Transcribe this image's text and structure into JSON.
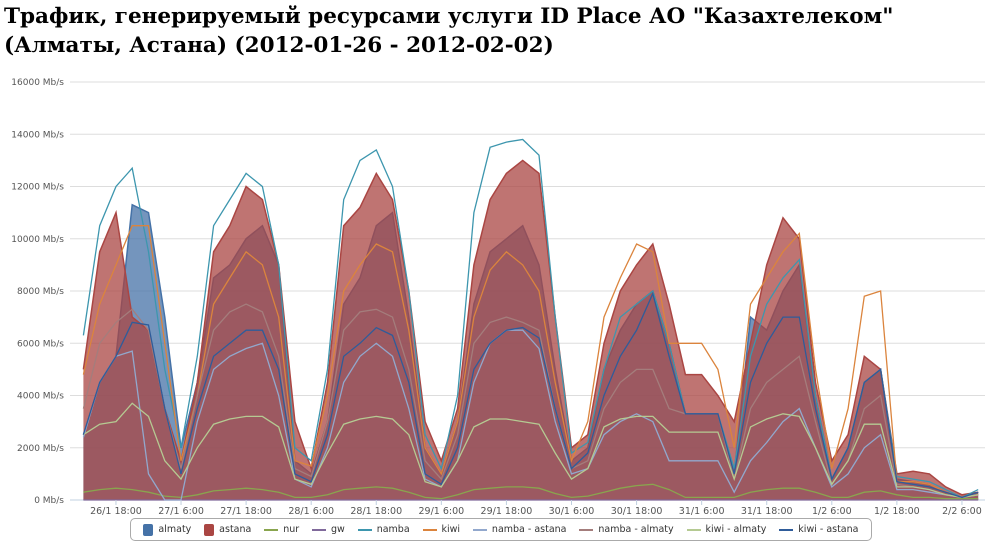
{
  "title": "Трафик, генерируемый ресурсами услуги ID Place АО \"Казахтелеком\" (Алматы, Астана) (2012-01-26 - 2012-02-02)",
  "chart_data": {
    "type": "area",
    "title": "Трафик, генерируемый ресурсами услуги ID Place АО \"Казахтелеком\" (Алматы, Астана) (2012-01-26 - 2012-02-02)",
    "xlim": [
      "2012-01-26 11:00",
      "2012-02-02 10:15"
    ],
    "ylim": [
      0,
      16000
    ],
    "grid": true,
    "legend_placement": "bottom",
    "y_ticks": [
      "0 Mb/s",
      "2000 Mb/s",
      "4000 Mb/s",
      "6000 Mb/s",
      "8000 Mb/s",
      "10000 Mb/s",
      "12000 Mb/s",
      "14000 Mb/s",
      "16000 Mb/s"
    ],
    "y_tick_values": [
      0,
      2000,
      4000,
      6000,
      8000,
      10000,
      12000,
      14000,
      16000
    ],
    "x_ticks": [
      "26/1 18:00",
      "27/1 6:00",
      "27/1 18:00",
      "28/1 6:00",
      "28/1 18:00",
      "29/1 6:00",
      "29/1 18:00",
      "30/1 6:00",
      "30/1 18:00",
      "31/1 6:00",
      "31/1 18:00",
      "1/2 6:00",
      "1/2 18:00",
      "2/2 6:00"
    ],
    "x_tick_values": [
      "2012-01-26 18:00",
      "2012-01-27 06:00",
      "2012-01-27 18:00",
      "2012-01-28 06:00",
      "2012-01-28 18:00",
      "2012-01-29 06:00",
      "2012-01-29 18:00",
      "2012-01-30 06:00",
      "2012-01-30 18:00",
      "2012-01-31 06:00",
      "2012-01-31 18:00",
      "2012-02-01 06:00",
      "2012-02-01 18:00",
      "2012-02-02 06:00"
    ],
    "x": [
      "2012-01-26 12:00",
      "2012-01-26 15:00",
      "2012-01-26 18:00",
      "2012-01-26 21:00",
      "2012-01-27 00:00",
      "2012-01-27 03:00",
      "2012-01-27 06:00",
      "2012-01-27 09:00",
      "2012-01-27 12:00",
      "2012-01-27 15:00",
      "2012-01-27 18:00",
      "2012-01-27 21:00",
      "2012-01-28 00:00",
      "2012-01-28 03:00",
      "2012-01-28 06:00",
      "2012-01-28 09:00",
      "2012-01-28 12:00",
      "2012-01-28 15:00",
      "2012-01-28 18:00",
      "2012-01-28 21:00",
      "2012-01-29 00:00",
      "2012-01-29 03:00",
      "2012-01-29 06:00",
      "2012-01-29 09:00",
      "2012-01-29 12:00",
      "2012-01-29 15:00",
      "2012-01-29 18:00",
      "2012-01-29 21:00",
      "2012-01-30 00:00",
      "2012-01-30 03:00",
      "2012-01-30 06:00",
      "2012-01-30 09:00",
      "2012-01-30 12:00",
      "2012-01-30 15:00",
      "2012-01-30 18:00",
      "2012-01-30 21:00",
      "2012-01-31 00:00",
      "2012-01-31 03:00",
      "2012-01-31 06:00",
      "2012-01-31 09:00",
      "2012-01-31 12:00",
      "2012-01-31 15:00",
      "2012-01-31 18:00",
      "2012-01-31 21:00",
      "2012-02-01 00:00",
      "2012-02-01 03:00",
      "2012-02-01 06:00",
      "2012-02-01 09:00",
      "2012-02-01 12:00",
      "2012-02-01 15:00",
      "2012-02-01 18:00",
      "2012-02-01 21:00",
      "2012-02-02 00:00",
      "2012-02-02 03:00",
      "2012-02-02 06:00",
      "2012-02-02 09:00"
    ],
    "series": [
      {
        "name": "almaty",
        "kind": "area",
        "color": "#4572a7",
        "values": [
          2500,
          4500,
          5500,
          11300,
          11000,
          7000,
          2000,
          4500,
          8500,
          9000,
          10000,
          10500,
          9000,
          1500,
          1000,
          3000,
          7500,
          8500,
          10500,
          11000,
          7000,
          2000,
          1000,
          3000,
          7500,
          9500,
          10000,
          10500,
          9000,
          5000,
          1500,
          2000,
          5000,
          6500,
          7500,
          8000,
          6000,
          3300,
          3300,
          3300,
          1000,
          7000,
          6500,
          8000,
          9000,
          4000,
          800,
          2000,
          4500,
          5000,
          800,
          700,
          600,
          300,
          100,
          300
        ]
      },
      {
        "name": "astana",
        "kind": "area",
        "color": "#aa4643",
        "values": [
          5000,
          9500,
          11000,
          7000,
          6500,
          3500,
          1500,
          4500,
          9500,
          10500,
          12000,
          11500,
          9000,
          3000,
          1200,
          4500,
          10500,
          11200,
          12500,
          11500,
          8000,
          3000,
          1500,
          3500,
          9000,
          11500,
          12500,
          13000,
          12500,
          7000,
          2000,
          2500,
          6000,
          8000,
          9000,
          9800,
          7500,
          4800,
          4800,
          4000,
          3000,
          6000,
          9000,
          10800,
          10000,
          4500,
          1500,
          2500,
          5500,
          5000,
          1000,
          1100,
          1000,
          500,
          200,
          300
        ]
      },
      {
        "name": "nur",
        "kind": "line",
        "color": "#89a54e",
        "values": [
          300,
          400,
          450,
          400,
          300,
          150,
          100,
          200,
          350,
          400,
          450,
          400,
          300,
          100,
          100,
          200,
          400,
          450,
          500,
          450,
          300,
          100,
          50,
          200,
          400,
          450,
          500,
          500,
          450,
          250,
          100,
          150,
          300,
          450,
          550,
          600,
          400,
          100,
          100,
          100,
          100,
          300,
          400,
          450,
          450,
          300,
          100,
          100,
          300,
          350,
          200,
          100,
          100,
          50,
          50,
          50
        ]
      },
      {
        "name": "gw",
        "kind": "line",
        "color": "#80699b",
        "values": [
          0,
          0,
          0,
          0,
          0,
          0,
          0,
          0,
          0,
          0,
          0,
          0,
          0,
          0,
          0,
          0,
          0,
          0,
          0,
          0,
          0,
          0,
          0,
          0,
          0,
          0,
          0,
          0,
          0,
          0,
          0,
          0,
          0,
          0,
          0,
          0,
          0,
          0,
          0,
          0,
          0,
          0,
          0,
          0,
          0,
          0,
          0,
          0,
          0,
          0,
          0,
          0,
          0,
          0,
          0,
          0
        ]
      },
      {
        "name": "namba",
        "kind": "line",
        "color": "#3d96ae",
        "values": [
          6300,
          10500,
          12000,
          12700,
          9500,
          5000,
          2000,
          5500,
          10500,
          11500,
          12500,
          12000,
          9000,
          2000,
          1500,
          5000,
          11500,
          13000,
          13400,
          12000,
          8000,
          2500,
          1200,
          4000,
          11000,
          13500,
          13700,
          13800,
          13200,
          7000,
          1800,
          2200,
          5000,
          7000,
          7500,
          8000,
          6000,
          3300,
          3300,
          3300,
          1200,
          5500,
          7500,
          8500,
          9200,
          4000,
          800,
          2000,
          4500,
          5000,
          900,
          800,
          700,
          400,
          100,
          400
        ]
      },
      {
        "name": "kiwi",
        "kind": "line",
        "color": "#db843d",
        "values": [
          4800,
          7500,
          9000,
          10500,
          10500,
          6000,
          1500,
          4000,
          7500,
          8500,
          9500,
          9000,
          7000,
          1500,
          1300,
          4000,
          8000,
          9000,
          9800,
          9500,
          6500,
          2000,
          1000,
          3000,
          7000,
          8800,
          9500,
          9000,
          8000,
          4500,
          1500,
          3000,
          7000,
          8500,
          9800,
          9500,
          6000,
          6000,
          6000,
          5000,
          2000,
          7500,
          8500,
          9500,
          10200,
          5000,
          1200,
          3500,
          7800,
          8000,
          700,
          700,
          600,
          300,
          100,
          200
        ]
      },
      {
        "name": "namba - astana",
        "kind": "line",
        "color": "#92a8cd",
        "values": [
          2400,
          4500,
          5500,
          5700,
          1000,
          0,
          0,
          3000,
          5000,
          5500,
          5800,
          6000,
          4000,
          800,
          500,
          2000,
          4500,
          5500,
          6000,
          5500,
          3500,
          800,
          500,
          1500,
          4500,
          6000,
          6500,
          6500,
          5800,
          3000,
          1000,
          1200,
          2500,
          3000,
          3300,
          3000,
          1500,
          1500,
          1500,
          1500,
          300,
          1500,
          2200,
          3000,
          3500,
          2000,
          500,
          1000,
          2000,
          2500,
          400,
          400,
          300,
          200,
          100,
          200
        ]
      },
      {
        "name": "namba - almaty",
        "kind": "line",
        "color": "#a47d7c",
        "values": [
          3500,
          6000,
          6800,
          7300,
          6500,
          3500,
          1200,
          4000,
          6500,
          7200,
          7500,
          7200,
          5500,
          1200,
          900,
          3000,
          6500,
          7200,
          7300,
          7000,
          5000,
          1500,
          800,
          2500,
          6000,
          6800,
          7000,
          6800,
          6500,
          3500,
          1200,
          1500,
          3500,
          4500,
          5000,
          5000,
          3500,
          3300,
          3300,
          3300,
          800,
          3500,
          4500,
          5000,
          5500,
          3000,
          600,
          1500,
          3500,
          4000,
          600,
          500,
          400,
          200,
          100,
          200
        ]
      },
      {
        "name": "kiwi - almaty",
        "kind": "line",
        "color": "#b5ca92",
        "values": [
          2500,
          2900,
          3000,
          3700,
          3200,
          1500,
          800,
          2000,
          2900,
          3100,
          3200,
          3200,
          2800,
          800,
          600,
          1800,
          2900,
          3100,
          3200,
          3100,
          2500,
          700,
          500,
          1500,
          2800,
          3100,
          3100,
          3000,
          2900,
          1800,
          800,
          1200,
          2800,
          3100,
          3200,
          3200,
          2600,
          2600,
          2600,
          2600,
          800,
          2800,
          3100,
          3300,
          3200,
          2000,
          600,
          1500,
          2900,
          2900,
          500,
          500,
          400,
          200,
          100,
          200
        ]
      },
      {
        "name": "kiwi - astana",
        "kind": "line",
        "color": "#2f5c9a",
        "values": [
          2500,
          4500,
          5500,
          6800,
          6700,
          3500,
          1000,
          3500,
          5500,
          6000,
          6500,
          6500,
          5000,
          1000,
          700,
          2500,
          5500,
          6000,
          6600,
          6300,
          4500,
          1000,
          600,
          2000,
          5000,
          6000,
          6500,
          6600,
          6200,
          3500,
          1200,
          1800,
          4000,
          5500,
          6500,
          7900,
          5500,
          3300,
          3300,
          3300,
          1000,
          4500,
          6000,
          7000,
          7000,
          3500,
          800,
          2000,
          4500,
          5000,
          700,
          600,
          500,
          300,
          100,
          300
        ]
      }
    ]
  }
}
